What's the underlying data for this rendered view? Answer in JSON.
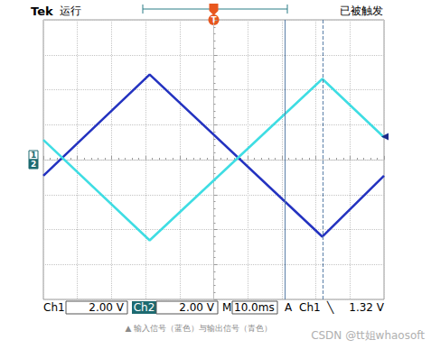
{
  "chart_data": {
    "type": "line",
    "x": [
      -50,
      -18.8,
      31.9,
      50
    ],
    "series": [
      {
        "name": "1",
        "color": "#2433c0",
        "values": [
          -0.92,
          4.87,
          -4.41,
          -0.92
        ]
      },
      {
        "name": "2",
        "color": "#3fdde3",
        "values": [
          1.13,
          -4.62,
          4.62,
          1.28
        ]
      }
    ],
    "xlim": [
      -50,
      50
    ],
    "xticks": [
      -50,
      -40,
      -30,
      -20,
      -10,
      0,
      10,
      20,
      30,
      40,
      50
    ],
    "ylim": [
      -8,
      8
    ],
    "yticks": [
      -8,
      -6,
      -4,
      -2,
      0,
      2,
      4,
      6,
      8
    ],
    "grid": true,
    "tick_labels": false,
    "cursors": [
      21,
      31.9
    ]
  },
  "header": {
    "brand": "Tek",
    "state": "运行",
    "status": "已被触发",
    "trigger_marker": "T",
    "trigger_position": 0
  },
  "footer": {
    "ch1": "Ch1",
    "ch1_scale": "2.00 V",
    "ch2": "Ch2",
    "ch2_scale": "2.00 V",
    "timebase_prefix": "M",
    "timebase": "10.0ms",
    "trigger_mode": "A",
    "trigger_source": "Ch1",
    "trigger_slope": "╲",
    "trigger_level": 1.32,
    "trigger_level_label": "1.32 V"
  },
  "caption": "▲ 输入信号（蓝色）与输出信号（青色）",
  "watermark": "CSDN @tt姐whaosoft"
}
